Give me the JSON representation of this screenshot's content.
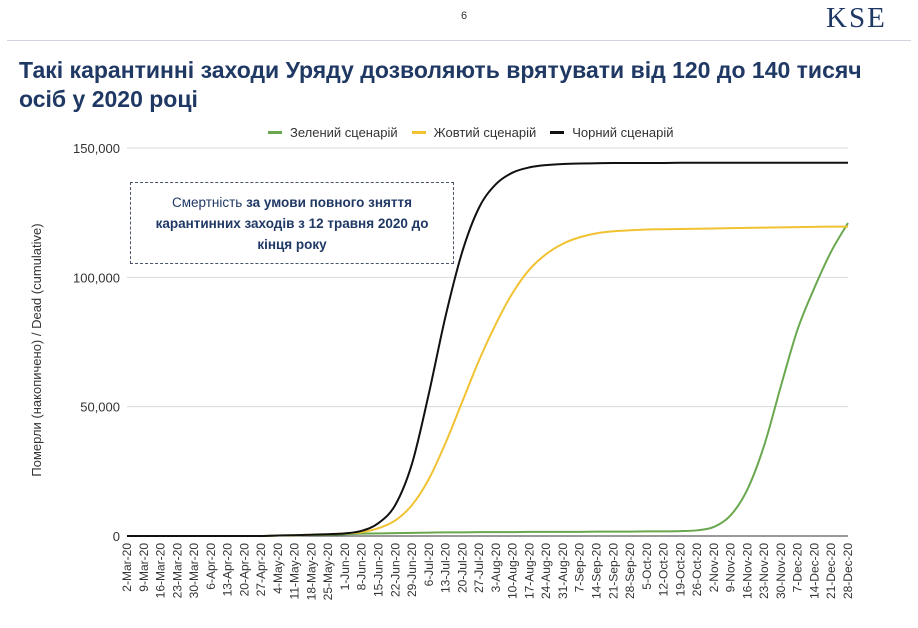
{
  "page_number": "6",
  "logo_text": "KSE",
  "title": "Такі карантинні заходи Уряду дозволяють врятувати від 120 до 140 тисяч осіб у 2020 році",
  "note": {
    "prefix": "Смертність ",
    "bold": "за умови повного зняття карантинних заходів з 12 травня 2020 до кінця року"
  },
  "colors": {
    "green": "#6aa84f",
    "yellow": "#f1c232",
    "black": "#111111",
    "title": "#1f3864"
  },
  "chart_data": {
    "type": "line",
    "ylabel": "Померли (накопичено) / Dead (cumulative)",
    "xlabel": "",
    "ylim": [
      0,
      150000
    ],
    "yticks": [
      0,
      50000,
      100000,
      150000
    ],
    "ytick_labels": [
      "0",
      "50,000",
      "100,000",
      "150,000"
    ],
    "grid": "horizontal",
    "legend_position": "top",
    "categories": [
      "2-Mar-20",
      "9-Mar-20",
      "16-Mar-20",
      "23-Mar-20",
      "30-Mar-20",
      "6-Apr-20",
      "13-Apr-20",
      "20-Apr-20",
      "27-Apr-20",
      "4-May-20",
      "11-May-20",
      "18-May-20",
      "25-May-20",
      "1-Jun-20",
      "8-Jun-20",
      "15-Jun-20",
      "22-Jun-20",
      "29-Jun-20",
      "6-Jul-20",
      "13-Jul-20",
      "20-Jul-20",
      "27-Jul-20",
      "3-Aug-20",
      "10-Aug-20",
      "17-Aug-20",
      "24-Aug-20",
      "31-Aug-20",
      "7-Sep-20",
      "14-Sep-20",
      "21-Sep-20",
      "28-Sep-20",
      "5-Oct-20",
      "12-Oct-20",
      "19-Oct-20",
      "26-Oct-20",
      "2-Nov-20",
      "9-Nov-20",
      "16-Nov-20",
      "23-Nov-20",
      "30-Nov-20",
      "7-Dec-20",
      "14-Dec-20",
      "21-Dec-20",
      "28-Dec-20"
    ],
    "series": [
      {
        "name": "Зелений сценарій",
        "color": "#6aa84f",
        "values": [
          0,
          0,
          0,
          0,
          0,
          0,
          0,
          0,
          0,
          200,
          300,
          400,
          500,
          700,
          900,
          1000,
          1100,
          1200,
          1300,
          1400,
          1400,
          1500,
          1500,
          1500,
          1600,
          1600,
          1600,
          1600,
          1700,
          1700,
          1700,
          1800,
          1800,
          1900,
          2200,
          3500,
          8000,
          18000,
          35000,
          58000,
          80000,
          96000,
          110000,
          121000
        ]
      },
      {
        "name": "Жовтий сценарій",
        "color": "#f1c232",
        "values": [
          0,
          0,
          0,
          0,
          0,
          0,
          0,
          0,
          0,
          200,
          300,
          500,
          700,
          1000,
          1500,
          3000,
          6000,
          12000,
          22000,
          36000,
          52000,
          68000,
          82000,
          94000,
          103000,
          109000,
          113000,
          115500,
          117000,
          117800,
          118200,
          118500,
          118600,
          118700,
          118800,
          118900,
          119000,
          119100,
          119200,
          119300,
          119400,
          119500,
          119600,
          119600
        ]
      },
      {
        "name": "Чорний сценарій",
        "color": "#111111",
        "values": [
          0,
          0,
          0,
          0,
          0,
          0,
          0,
          0,
          0,
          200,
          300,
          500,
          700,
          1000,
          2000,
          5000,
          12000,
          28000,
          55000,
          85000,
          110000,
          127000,
          136000,
          140500,
          142500,
          143400,
          143800,
          144000,
          144100,
          144200,
          144200,
          144200,
          144200,
          144300,
          144300,
          144300,
          144300,
          144300,
          144300,
          144300,
          144300,
          144300,
          144300,
          144300
        ]
      }
    ]
  }
}
